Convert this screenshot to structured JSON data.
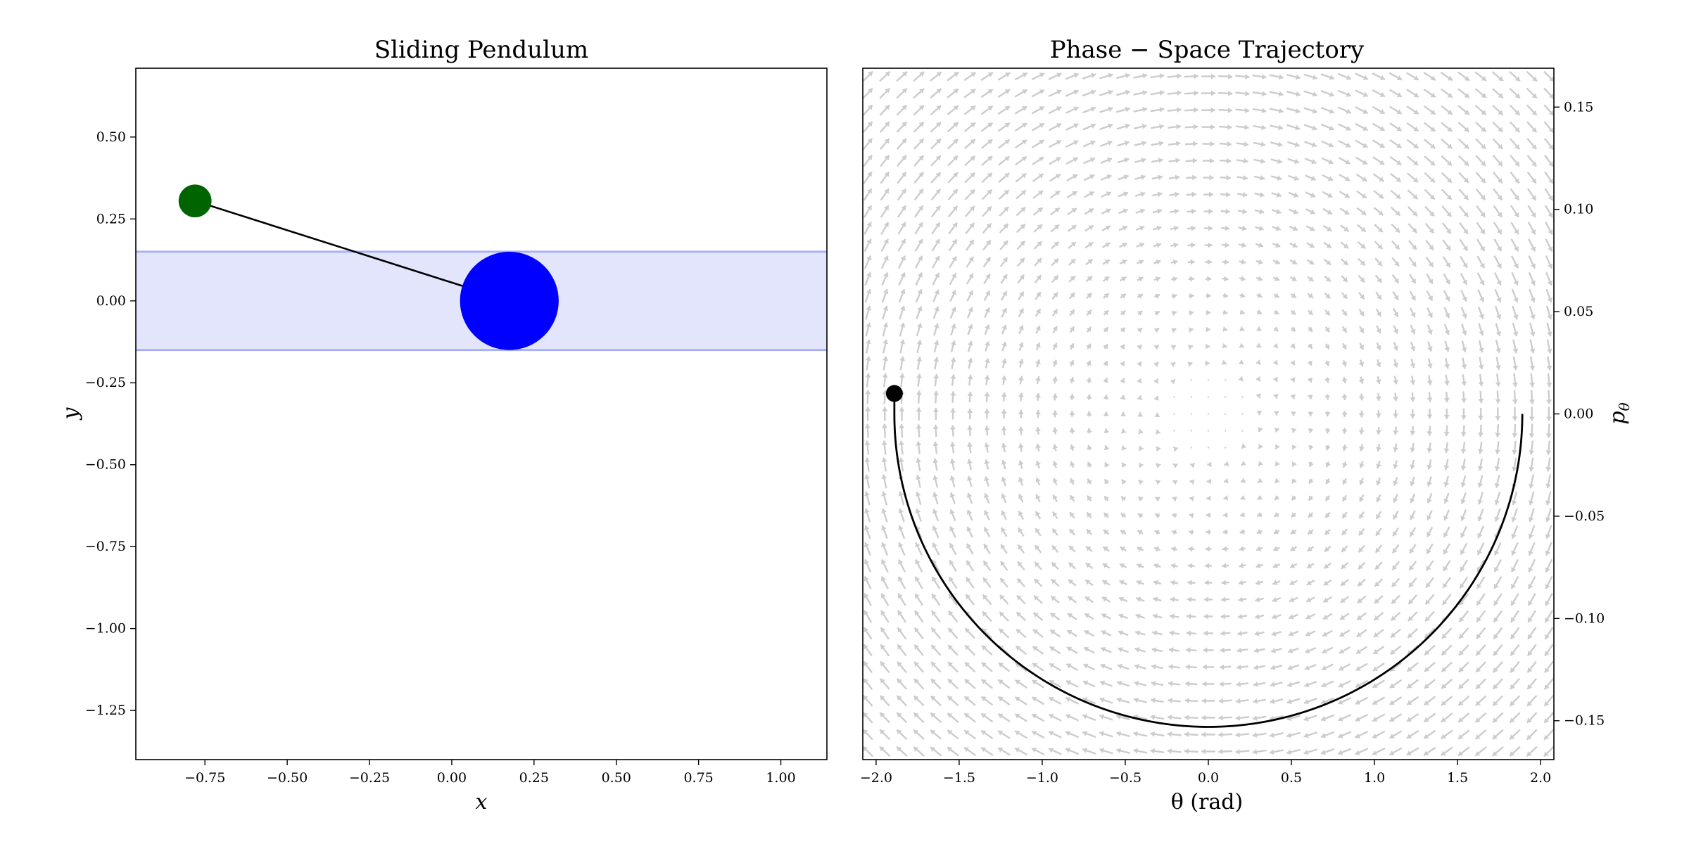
{
  "chart_data": [
    {
      "type": "scatter",
      "title": "Sliding Pendulum",
      "xlabel": "x",
      "ylabel": "y",
      "xlim": [
        -0.96,
        1.14
      ],
      "ylim": [
        -1.4,
        0.71
      ],
      "x_ticks": [
        -0.75,
        -0.5,
        -0.25,
        0.0,
        0.25,
        0.5,
        0.75,
        1.0
      ],
      "x_tick_labels": [
        "−0.75",
        "−0.50",
        "−0.25",
        "0.00",
        "0.25",
        "0.50",
        "0.75",
        "1.00"
      ],
      "y_ticks": [
        0.5,
        0.25,
        0.0,
        -0.25,
        -0.5,
        -0.75,
        -1.0,
        -1.25
      ],
      "y_tick_labels": [
        "0.50",
        "0.25",
        "0.00",
        "−0.25",
        "−0.50",
        "−0.75",
        "−1.00",
        "−1.25"
      ],
      "rail": {
        "y_min": -0.15,
        "y_max": 0.15,
        "fill_color": "#e3e5fc",
        "edge_color": "#aab0f5"
      },
      "rod": {
        "from": [
          0.175,
          0.0
        ],
        "to": [
          -0.78,
          0.305
        ],
        "color": "#000000"
      },
      "sliding_mass": {
        "x": 0.175,
        "y": 0.0,
        "radius": 0.15,
        "color": "#0000ff"
      },
      "bob": {
        "x": -0.78,
        "y": 0.305,
        "radius": 0.05,
        "color": "#006400"
      },
      "grid": false
    },
    {
      "type": "line",
      "title": "Phase − Space Trajectory",
      "xlabel": "θ  (rad)",
      "ylabel": "p",
      "ylabel_sub": "θ",
      "ylabel_position": "right",
      "xlim": [
        -2.08,
        2.08
      ],
      "ylim": [
        -0.169,
        0.169
      ],
      "x_ticks": [
        -2.0,
        -1.5,
        -1.0,
        -0.5,
        0.0,
        0.5,
        1.0,
        1.5,
        2.0
      ],
      "x_tick_labels": [
        "−2.0",
        "−1.5",
        "−1.0",
        "−0.5",
        "0.0",
        "0.5",
        "1.0",
        "1.5",
        "2.0"
      ],
      "y_ticks": [
        0.15,
        0.1,
        0.05,
        0.0,
        -0.05,
        -0.1,
        -0.15
      ],
      "y_tick_labels": [
        "0.15",
        "0.10",
        "0.05",
        "0.00",
        "−0.05",
        "−0.10",
        "−0.15"
      ],
      "trajectory": {
        "theta_start": 1.89,
        "theta_end": -1.89,
        "p_min": -0.153,
        "color": "#000000"
      },
      "current_state": {
        "theta": -1.89,
        "p": 0.01,
        "color": "#000000"
      },
      "vector_field": {
        "color": "#cccccc",
        "theta_range": [
          -2.05,
          2.05
        ],
        "p_range": [
          -0.165,
          0.165
        ]
      },
      "grid": false
    }
  ]
}
